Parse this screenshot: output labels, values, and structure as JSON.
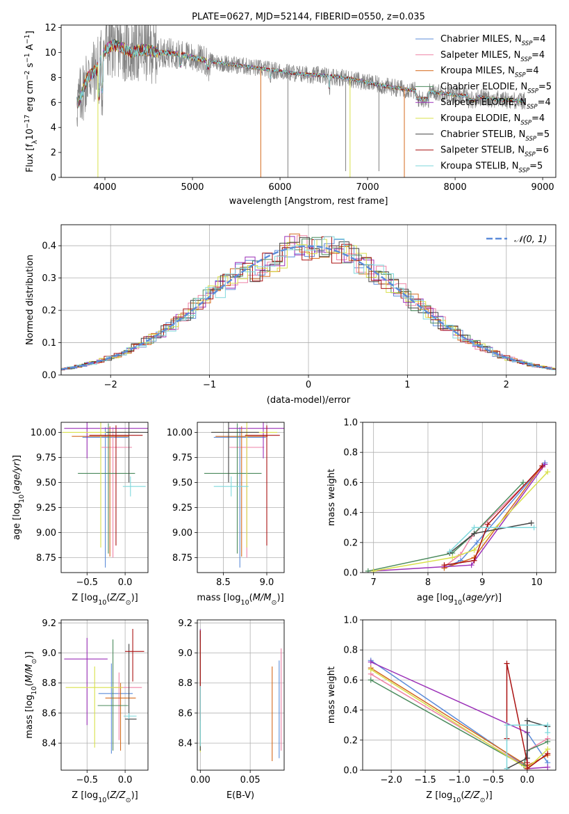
{
  "title": "PLATE=0627, MJD=52144, FIBERID=0550, z=0.035",
  "colors": {
    "chabrier_miles": "#5b8bd9",
    "salpeter_miles": "#ee82a5",
    "kroupa_miles": "#d4691c",
    "chabrier_elodie": "#4a8a5c",
    "salpeter_elodie": "#9b30b8",
    "kroupa_elodie": "#d8e04a",
    "chabrier_stelib": "#444444",
    "salpeter_stelib": "#aa1111",
    "kroupa_stelib": "#7fd8dc",
    "data_spectrum": "#808080",
    "gaussian": "#5b8bd9"
  },
  "chart_data": [
    {
      "id": "spectrum",
      "type": "line",
      "title": "PLATE=0627, MJD=52144, FIBERID=0550, z=0.035",
      "xlabel": "wavelength [Angstrom, rest frame]",
      "ylabel": "Flux [f_λ 10^-17 erg cm^-2 s^-1 A^-1]",
      "xlim": [
        3500,
        9150
      ],
      "ylim": [
        0,
        12.2
      ],
      "xticks": [
        "4000",
        "5000",
        "6000",
        "7000",
        "8000",
        "9000"
      ],
      "yticks": [
        "0",
        "2",
        "4",
        "6",
        "8",
        "10",
        "12"
      ],
      "grid": false,
      "legend_position": "top-right",
      "legend": [
        {
          "name": "Chabrier MILES",
          "nssp": "4",
          "color": "#5b8bd9"
        },
        {
          "name": "Salpeter MILES",
          "nssp": "4",
          "color": "#ee82a5"
        },
        {
          "name": "Kroupa MILES",
          "nssp": "4",
          "color": "#d4691c"
        },
        {
          "name": "Chabrier ELODIE",
          "nssp": "5",
          "color": "#4a8a5c"
        },
        {
          "name": "Salpeter ELODIE",
          "nssp": "4",
          "color": "#9b30b8"
        },
        {
          "name": "Kroupa ELODIE",
          "nssp": "4",
          "color": "#d8e04a"
        },
        {
          "name": "Chabrier STELIB",
          "nssp": "5",
          "color": "#444444"
        },
        {
          "name": "Salpeter STELIB",
          "nssp": "6",
          "color": "#aa1111"
        },
        {
          "name": "Kroupa STELIB",
          "nssp": "5",
          "color": "#7fd8dc"
        }
      ],
      "continuum": {
        "x": [
          3700,
          3800,
          3900,
          4000,
          4100,
          4200,
          4300,
          4400,
          4500,
          4600,
          4700,
          4800,
          4900,
          5000,
          5200,
          5400,
          5600,
          5800,
          6000,
          6200,
          6400,
          6600,
          6800,
          7000,
          7200,
          7400,
          7600,
          7800,
          8000,
          8200,
          8400,
          8600,
          8800
        ],
        "y": [
          6.0,
          8.0,
          8.6,
          10.2,
          10.6,
          10.4,
          10.0,
          10.2,
          10.2,
          10.0,
          10.0,
          9.9,
          9.8,
          9.6,
          9.3,
          9.1,
          8.9,
          8.7,
          8.5,
          8.3,
          8.2,
          8.1,
          7.9,
          7.6,
          7.3,
          7.1,
          6.9,
          6.8,
          6.6,
          6.5,
          6.3,
          6.2,
          6.1
        ]
      },
      "dips": [
        {
          "x": 3920,
          "y": 0.0,
          "color": "#d8e04a"
        },
        {
          "x": 5780,
          "y": 0.0,
          "color": "#d4691c"
        },
        {
          "x": 6800,
          "y": 0.0,
          "color": "#d8e04a"
        },
        {
          "x": 7420,
          "y": 0.0,
          "color": "#d4691c"
        },
        {
          "x": 6090,
          "y": 0.0,
          "color": "#808080"
        },
        {
          "x": 6750,
          "y": 0.5,
          "color": "#808080"
        },
        {
          "x": 7130,
          "y": 0.5,
          "color": "#808080"
        }
      ]
    },
    {
      "id": "residual_hist",
      "type": "line",
      "xlabel": "(data-model)/error",
      "ylabel": "Normed distribution",
      "xlim": [
        -2.5,
        2.5
      ],
      "ylim": [
        0,
        0.465
      ],
      "xticks": [
        "−2",
        "−1",
        "0",
        "1",
        "2"
      ],
      "yticks": [
        "0.0",
        "0.1",
        "0.2",
        "0.3",
        "0.4"
      ],
      "grid": true,
      "legend_position": "top-right",
      "legend": [
        {
          "name": "𝒩(0, 1)",
          "style": "dashed",
          "color": "#5b8bd9"
        }
      ],
      "gaussian": {
        "mean": 0,
        "sigma": 1
      }
    },
    {
      "id": "age_vs_Z",
      "type": "scatter",
      "xlabel": "Z [log10(Z/Z☉)]",
      "ylabel": "age  [log10(age/yr)]",
      "xlim": [
        -0.84,
        0.3
      ],
      "ylim": [
        8.6,
        10.1
      ],
      "xticks": [
        "−0.5",
        "0.0"
      ],
      "yticks": [
        "8.75",
        "9.00",
        "9.25",
        "9.50",
        "9.75",
        "10.00"
      ],
      "grid": true,
      "points": [
        {
          "color": "#5b8bd9",
          "x": -0.26,
          "xerr": [
            0.3,
            0.3
          ],
          "y": 9.95,
          "yerr": [
            1.3,
            0.1
          ]
        },
        {
          "color": "#ee82a5",
          "x": -0.16,
          "xerr": [
            0.15,
            0.25
          ],
          "y": 9.85,
          "yerr": [
            1.1,
            0.2
          ]
        },
        {
          "color": "#d4691c",
          "x": -0.2,
          "xerr": [
            0.5,
            0.25
          ],
          "y": 9.96,
          "yerr": [
            1.2,
            0.1
          ]
        },
        {
          "color": "#4a8a5c",
          "x": -0.22,
          "xerr": [
            0.4,
            0.35
          ],
          "y": 9.59,
          "yerr": [
            0.8,
            0.5
          ]
        },
        {
          "color": "#9b30b8",
          "x": -0.5,
          "xerr": [
            0.3,
            0.8
          ],
          "y": 10.04,
          "yerr": [
            0.3,
            0.1
          ]
        },
        {
          "color": "#d8e04a",
          "x": -0.32,
          "xerr": [
            0.5,
            0.5
          ],
          "y": 10.0,
          "yerr": [
            1.15,
            0.1
          ]
        },
        {
          "color": "#444444",
          "x": 0.05,
          "xerr": [
            0.3,
            0.25
          ],
          "y": 10.0,
          "yerr": [
            0.5,
            0.1
          ]
        },
        {
          "color": "#aa1111",
          "x": -0.12,
          "xerr": [
            0.35,
            0.35
          ],
          "y": 9.97,
          "yerr": [
            1.1,
            0.1
          ]
        },
        {
          "color": "#7fd8dc",
          "x": 0.07,
          "xerr": [
            0.1,
            0.2
          ],
          "y": 9.46,
          "yerr": [
            0.1,
            0.1
          ]
        }
      ]
    },
    {
      "id": "age_vs_mass",
      "type": "scatter",
      "xlabel": "mass [log10(M/M☉)]",
      "ylabel": "",
      "xlim": [
        8.2,
        9.2
      ],
      "ylim": [
        8.6,
        10.1
      ],
      "xticks": [
        "8.5",
        "9.0"
      ],
      "yticks": [
        "8.75",
        "9.00",
        "9.25",
        "9.50",
        "9.75",
        "10.00"
      ],
      "grid": true,
      "points": [
        {
          "color": "#5b8bd9",
          "x": 8.69,
          "xerr": [
            0.3,
            0.3
          ],
          "y": 9.95,
          "yerr": [
            1.3,
            0.1
          ]
        },
        {
          "color": "#ee82a5",
          "x": 8.77,
          "xerr": [
            0.2,
            0.2
          ],
          "y": 9.85,
          "yerr": [
            1.1,
            0.2
          ]
        },
        {
          "color": "#d4691c",
          "x": 8.71,
          "xerr": [
            0.3,
            0.3
          ],
          "y": 9.96,
          "yerr": [
            1.2,
            0.1
          ]
        },
        {
          "color": "#4a8a5c",
          "x": 8.66,
          "xerr": [
            0.38,
            0.28
          ],
          "y": 9.59,
          "yerr": [
            0.8,
            0.5
          ]
        },
        {
          "color": "#9b30b8",
          "x": 8.96,
          "xerr": [
            0.4,
            0.4
          ],
          "y": 10.04,
          "yerr": [
            0.3,
            0.1
          ]
        },
        {
          "color": "#d8e04a",
          "x": 8.77,
          "xerr": [
            0.4,
            0.35
          ],
          "y": 10.0,
          "yerr": [
            1.15,
            0.1
          ]
        },
        {
          "color": "#444444",
          "x": 8.56,
          "xerr": [
            0.2,
            0.35
          ],
          "y": 10.0,
          "yerr": [
            0.5,
            0.1
          ]
        },
        {
          "color": "#aa1111",
          "x": 9.0,
          "xerr": [
            0.25,
            0.15
          ],
          "y": 9.97,
          "yerr": [
            1.1,
            0.1
          ]
        },
        {
          "color": "#7fd8dc",
          "x": 8.59,
          "xerr": [
            0.2,
            0.2
          ],
          "y": 9.46,
          "yerr": [
            0.1,
            0.1
          ]
        }
      ]
    },
    {
      "id": "mass_weight_vs_age",
      "type": "line",
      "xlabel": "age  [log10(age/yr)]",
      "ylabel": "mass weight",
      "xlim": [
        6.8,
        10.35
      ],
      "ylim": [
        0,
        1.0
      ],
      "xticks": [
        "7",
        "8",
        "9",
        "10"
      ],
      "yticks": [
        "0.0",
        "0.2",
        "0.4",
        "0.6",
        "0.8",
        "1.0"
      ],
      "grid": true,
      "series": [
        {
          "color": "#5b8bd9",
          "x": [
            8.3,
            8.6,
            8.9,
            10.15
          ],
          "y": [
            0.03,
            0.08,
            0.2,
            0.73
          ]
        },
        {
          "color": "#ee82a5",
          "x": [
            8.3,
            8.6,
            8.8,
            10.1
          ],
          "y": [
            0.04,
            0.12,
            0.24,
            0.7
          ]
        },
        {
          "color": "#d4691c",
          "x": [
            8.3,
            8.85,
            10.1
          ],
          "y": [
            0.03,
            0.1,
            0.71
          ]
        },
        {
          "color": "#4a8a5c",
          "x": [
            6.9,
            8.45,
            8.85,
            9.75
          ],
          "y": [
            0.01,
            0.13,
            0.26,
            0.6
          ]
        },
        {
          "color": "#9b30b8",
          "x": [
            7.0,
            8.8,
            10.15
          ],
          "y": [
            0.01,
            0.05,
            0.72
          ]
        },
        {
          "color": "#d8e04a",
          "x": [
            7.0,
            8.45,
            8.85,
            10.2
          ],
          "y": [
            0.01,
            0.1,
            0.15,
            0.67
          ]
        },
        {
          "color": "#444444",
          "x": [
            8.4,
            8.85,
            9.9
          ],
          "y": [
            0.13,
            0.26,
            0.33
          ]
        },
        {
          "color": "#aa1111",
          "x": [
            8.3,
            8.85,
            9.1,
            10.1
          ],
          "y": [
            0.05,
            0.08,
            0.32,
            0.71
          ]
        },
        {
          "color": "#7fd8dc",
          "x": [
            8.4,
            8.85,
            9.95
          ],
          "y": [
            0.14,
            0.3,
            0.3
          ]
        }
      ]
    },
    {
      "id": "mass_vs_Z",
      "type": "scatter",
      "xlabel": "Z [log10(Z/Z☉)]",
      "ylabel": "mass [log10(M/M☉)]",
      "xlim": [
        -0.84,
        0.3
      ],
      "ylim": [
        8.22,
        9.22
      ],
      "xticks": [
        "−0.5",
        "0.0"
      ],
      "yticks": [
        "8.4",
        "8.6",
        "8.8",
        "9.0",
        "9.2"
      ],
      "grid": true,
      "points": [
        {
          "color": "#5b8bd9",
          "x": -0.18,
          "xerr": [
            0.17,
            0.28
          ],
          "y": 8.73,
          "yerr": [
            0.4,
            0.2
          ]
        },
        {
          "color": "#ee82a5",
          "x": -0.08,
          "xerr": [
            0.07,
            0.3
          ],
          "y": 8.77,
          "yerr": [
            0.35,
            0.1
          ]
        },
        {
          "color": "#d4691c",
          "x": -0.06,
          "xerr": [
            0.2,
            0.2
          ],
          "y": 8.7,
          "yerr": [
            0.35,
            0.1
          ]
        },
        {
          "color": "#4a8a5c",
          "x": -0.16,
          "xerr": [
            0.2,
            0.2
          ],
          "y": 8.65,
          "yerr": [
            0.3,
            0.44
          ]
        },
        {
          "color": "#9b30b8",
          "x": -0.5,
          "xerr": [
            0.3,
            0.27
          ],
          "y": 8.96,
          "yerr": [
            0.44,
            0.14
          ]
        },
        {
          "color": "#d8e04a",
          "x": -0.4,
          "xerr": [
            0.38,
            0.37
          ],
          "y": 8.77,
          "yerr": [
            0.4,
            0.14
          ]
        },
        {
          "color": "#444444",
          "x": 0.05,
          "xerr": [
            0.05,
            0.1
          ],
          "y": 8.56,
          "yerr": [
            0.17,
            0.5
          ]
        },
        {
          "color": "#aa1111",
          "x": 0.1,
          "xerr": [
            0.1,
            0.15
          ],
          "y": 9.01,
          "yerr": [
            0.2,
            0.15
          ]
        },
        {
          "color": "#7fd8dc",
          "x": 0.05,
          "xerr": [
            0.07,
            0.1
          ],
          "y": 8.58,
          "yerr": [
            0.02,
            0.02
          ]
        }
      ]
    },
    {
      "id": "mass_vs_ebv",
      "type": "scatter",
      "xlabel": "E(B-V)",
      "ylabel": "",
      "xlim": [
        -0.003,
        0.084
      ],
      "ylim": [
        8.22,
        9.22
      ],
      "xticks": [
        "0.00",
        "0.05"
      ],
      "yticks": [
        "8.4",
        "8.6",
        "8.8",
        "9.0",
        "9.2"
      ],
      "grid": true,
      "points": [
        {
          "color": "#5b8bd9",
          "x": 0.079,
          "xerr": [
            0,
            0
          ],
          "y": 8.7,
          "yerr": [
            0.4,
            0.25
          ]
        },
        {
          "color": "#ee82a5",
          "x": 0.081,
          "xerr": [
            0,
            0
          ],
          "y": 8.75,
          "yerr": [
            0.4,
            0.28
          ]
        },
        {
          "color": "#d4691c",
          "x": 0.072,
          "xerr": [
            0,
            0
          ],
          "y": 8.6,
          "yerr": [
            0.32,
            0.31
          ]
        },
        {
          "color": "#4a8a5c",
          "x": 0.0,
          "xerr": [
            0,
            0
          ],
          "y": 8.7,
          "yerr": [
            0.35,
            0.45
          ]
        },
        {
          "color": "#9b30b8",
          "x": 0.0,
          "xerr": [
            0,
            0
          ],
          "y": 8.96,
          "yerr": [
            0.5,
            0.2
          ]
        },
        {
          "color": "#d8e04a",
          "x": 0.0,
          "xerr": [
            0,
            0
          ],
          "y": 8.77,
          "yerr": [
            0.43,
            0.3
          ]
        },
        {
          "color": "#444444",
          "x": 0.0,
          "xerr": [
            0,
            0
          ],
          "y": 8.6,
          "yerr": [
            0.25,
            0.55
          ]
        },
        {
          "color": "#aa1111",
          "x": 0.0,
          "xerr": [
            0,
            0
          ],
          "y": 9.0,
          "yerr": [
            0.45,
            0.15
          ]
        },
        {
          "color": "#7fd8dc",
          "x": 0.0,
          "xerr": [
            0,
            0
          ],
          "y": 8.58,
          "yerr": [
            0.2,
            0.2
          ]
        }
      ]
    },
    {
      "id": "mass_weight_vs_Z",
      "type": "line",
      "xlabel": "Z [log10(Z/Z☉)]",
      "ylabel": "mass weight",
      "xlim": [
        -2.42,
        0.42
      ],
      "ylim": [
        0,
        1.0
      ],
      "xticks": [
        "−2.0",
        "−1.5",
        "−1.0",
        "−0.5",
        "0.0"
      ],
      "yticks": [
        "0.0",
        "0.2",
        "0.4",
        "0.6",
        "0.8",
        "1.0"
      ],
      "grid": true,
      "series": [
        {
          "color": "#5b8bd9",
          "x": [
            -2.3,
            0.0,
            0.0,
            0.3
          ],
          "y": [
            0.73,
            0.02,
            0.25,
            0.05
          ]
        },
        {
          "color": "#ee82a5",
          "x": [
            -2.3,
            0.0,
            0.0,
            0.3
          ],
          "y": [
            0.64,
            0.02,
            0.13,
            0.21
          ]
        },
        {
          "color": "#d4691c",
          "x": [
            -2.3,
            0.0,
            0.3
          ],
          "y": [
            0.68,
            0.03,
            0.1
          ]
        },
        {
          "color": "#4a8a5c",
          "x": [
            -2.3,
            -0.05,
            0.0,
            0.3
          ],
          "y": [
            0.6,
            0.03,
            0.13,
            0.19
          ]
        },
        {
          "color": "#9b30b8",
          "x": [
            -2.3,
            0.0,
            0.0,
            0.3
          ],
          "y": [
            0.72,
            0.25,
            0.01,
            0.02
          ]
        },
        {
          "color": "#d8e04a",
          "x": [
            -2.3,
            0.0,
            0.3
          ],
          "y": [
            0.67,
            0.01,
            0.14
          ]
        },
        {
          "color": "#444444",
          "x": [
            -0.3,
            0.0,
            0.0,
            0.3
          ],
          "y": [
            0.01,
            0.08,
            0.33,
            0.29
          ]
        },
        {
          "color": "#aa1111",
          "x": [
            -0.3,
            -0.3,
            0.0,
            0.0,
            0.3
          ],
          "y": [
            0.21,
            0.71,
            0.05,
            0.01,
            0.11
          ]
        },
        {
          "color": "#7fd8dc",
          "x": [
            -0.3,
            -0.3,
            0.3,
            0.3
          ],
          "y": [
            0.01,
            0.3,
            0.3,
            0.25
          ]
        }
      ]
    }
  ]
}
